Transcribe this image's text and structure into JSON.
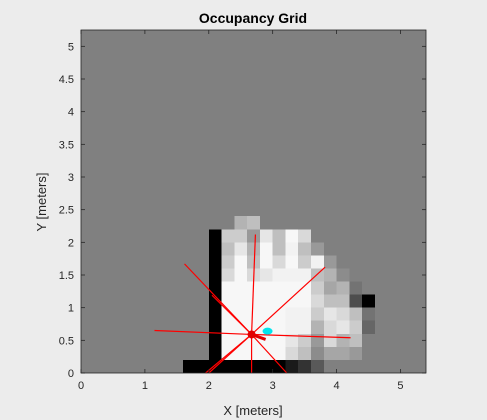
{
  "chart_data": {
    "type": "heatmap",
    "title": "Occupancy Grid",
    "xlabel": "X [meters]",
    "ylabel": "Y [meters]",
    "xlim": [
      0,
      5.4
    ],
    "ylim": [
      0,
      5.25
    ],
    "xticks": [
      0,
      1,
      2,
      3,
      4,
      5
    ],
    "xtick_labels": [
      "0",
      "1",
      "2",
      "3",
      "4",
      "5"
    ],
    "yticks": [
      0,
      0.5,
      1,
      1.5,
      2,
      2.5,
      3,
      3.5,
      4,
      4.5,
      5
    ],
    "ytick_labels": [
      "0",
      "0.5",
      "1",
      "1.5",
      "2",
      "2.5",
      "3",
      "3.5",
      "4",
      "4.5",
      "5"
    ],
    "grid": false,
    "resolution_m": 0.2,
    "default_occupancy": 0.5,
    "cells": [
      [
        1.6,
        0.0,
        2.2,
        0.2,
        0.0
      ],
      [
        2.2,
        0.0,
        3.2,
        0.2,
        0.0
      ],
      [
        3.2,
        0.0,
        3.4,
        0.2,
        0.1
      ],
      [
        3.4,
        0.0,
        3.6,
        0.2,
        0.2
      ],
      [
        3.6,
        0.0,
        3.8,
        0.2,
        0.35
      ],
      [
        2.0,
        0.2,
        2.2,
        0.8,
        0.0
      ],
      [
        2.2,
        0.2,
        3.2,
        1.0,
        0.97
      ],
      [
        3.2,
        0.2,
        3.4,
        0.4,
        0.85
      ],
      [
        3.4,
        0.2,
        3.6,
        0.4,
        0.75
      ],
      [
        3.6,
        0.2,
        3.8,
        0.4,
        0.55
      ],
      [
        3.2,
        0.4,
        3.4,
        0.6,
        0.9
      ],
      [
        3.4,
        0.4,
        3.6,
        0.6,
        0.8
      ],
      [
        3.6,
        0.4,
        3.8,
        0.6,
        0.6
      ],
      [
        3.2,
        0.6,
        3.6,
        1.0,
        0.95
      ],
      [
        3.6,
        0.6,
        3.8,
        0.8,
        0.7
      ],
      [
        2.0,
        0.8,
        2.2,
        1.0,
        0.0
      ],
      [
        3.6,
        0.8,
        3.8,
        1.0,
        0.8
      ],
      [
        3.8,
        0.8,
        4.0,
        1.0,
        0.9
      ],
      [
        4.0,
        0.8,
        4.2,
        1.0,
        0.85
      ],
      [
        4.2,
        0.8,
        4.4,
        1.0,
        0.75
      ],
      [
        4.4,
        0.8,
        4.6,
        1.0,
        0.45
      ],
      [
        4.2,
        0.6,
        4.4,
        0.8,
        0.8
      ],
      [
        4.4,
        0.6,
        4.6,
        0.8,
        0.4
      ],
      [
        4.0,
        0.4,
        4.2,
        0.6,
        0.7
      ],
      [
        4.2,
        0.4,
        4.4,
        0.6,
        0.75
      ],
      [
        4.4,
        0.4,
        4.6,
        0.6,
        0.5
      ],
      [
        3.8,
        0.2,
        4.2,
        0.4,
        0.65
      ],
      [
        4.2,
        0.2,
        4.4,
        0.4,
        0.6
      ],
      [
        3.8,
        0.4,
        4.0,
        0.8,
        0.85
      ],
      [
        4.0,
        0.6,
        4.2,
        0.8,
        0.9
      ],
      [
        2.0,
        1.0,
        2.2,
        1.4,
        0.0
      ],
      [
        2.2,
        1.0,
        3.6,
        1.4,
        0.97
      ],
      [
        3.6,
        1.0,
        3.8,
        1.2,
        0.85
      ],
      [
        3.8,
        1.0,
        4.0,
        1.2,
        0.75
      ],
      [
        4.0,
        1.0,
        4.2,
        1.2,
        0.75
      ],
      [
        4.2,
        1.0,
        4.4,
        1.2,
        0.3
      ],
      [
        4.4,
        1.0,
        4.6,
        1.2,
        0.0
      ],
      [
        3.6,
        1.2,
        3.8,
        1.4,
        0.8
      ],
      [
        3.8,
        1.2,
        4.0,
        1.4,
        0.65
      ],
      [
        4.0,
        1.2,
        4.2,
        1.4,
        0.7
      ],
      [
        4.2,
        1.2,
        4.4,
        1.4,
        0.45
      ],
      [
        2.0,
        1.4,
        2.2,
        1.6,
        0.0
      ],
      [
        2.2,
        1.4,
        2.4,
        1.6,
        0.85
      ],
      [
        2.4,
        1.4,
        2.6,
        1.6,
        0.97
      ],
      [
        2.6,
        1.4,
        2.8,
        1.6,
        0.85
      ],
      [
        2.8,
        1.4,
        3.0,
        1.6,
        0.9
      ],
      [
        3.0,
        1.4,
        3.6,
        1.6,
        0.95
      ],
      [
        3.6,
        1.4,
        3.8,
        1.6,
        0.75
      ],
      [
        3.8,
        1.4,
        4.0,
        1.6,
        0.7
      ],
      [
        4.0,
        1.4,
        4.2,
        1.6,
        0.55
      ],
      [
        2.0,
        1.6,
        2.2,
        1.8,
        0.0
      ],
      [
        2.2,
        1.6,
        2.4,
        1.8,
        0.8
      ],
      [
        2.4,
        1.6,
        2.6,
        1.8,
        0.97
      ],
      [
        2.6,
        1.6,
        2.8,
        1.8,
        0.75
      ],
      [
        2.8,
        1.6,
        3.0,
        1.8,
        0.97
      ],
      [
        3.0,
        1.6,
        3.2,
        1.8,
        0.85
      ],
      [
        3.2,
        1.6,
        3.4,
        1.8,
        0.97
      ],
      [
        3.4,
        1.6,
        3.6,
        1.8,
        0.8
      ],
      [
        3.6,
        1.6,
        3.8,
        1.8,
        0.95
      ],
      [
        3.8,
        1.6,
        4.0,
        1.8,
        0.6
      ],
      [
        2.0,
        1.8,
        2.2,
        2.0,
        0.0
      ],
      [
        2.2,
        1.8,
        2.4,
        2.0,
        0.75
      ],
      [
        2.4,
        1.8,
        2.6,
        2.0,
        0.9
      ],
      [
        2.6,
        1.8,
        2.8,
        2.0,
        0.7
      ],
      [
        2.8,
        1.8,
        3.0,
        2.0,
        0.97
      ],
      [
        3.0,
        1.8,
        3.2,
        2.0,
        0.75
      ],
      [
        3.2,
        1.8,
        3.4,
        2.0,
        0.95
      ],
      [
        3.4,
        1.8,
        3.6,
        2.0,
        0.75
      ],
      [
        3.6,
        1.8,
        3.8,
        2.0,
        0.6
      ],
      [
        2.0,
        2.0,
        2.2,
        2.2,
        0.0
      ],
      [
        2.2,
        2.0,
        2.4,
        2.2,
        0.8
      ],
      [
        2.4,
        2.0,
        2.6,
        2.2,
        0.8
      ],
      [
        2.6,
        2.0,
        2.8,
        2.2,
        0.6
      ],
      [
        2.8,
        2.0,
        3.0,
        2.2,
        0.9
      ],
      [
        3.0,
        2.0,
        3.2,
        2.2,
        0.75
      ],
      [
        3.2,
        2.0,
        3.4,
        2.2,
        0.97
      ],
      [
        3.4,
        2.0,
        3.6,
        2.2,
        0.85
      ],
      [
        2.4,
        2.2,
        2.6,
        2.4,
        0.7
      ],
      [
        2.6,
        2.2,
        2.8,
        2.4,
        0.75
      ]
    ],
    "robot": {
      "x": 2.67,
      "y": 0.59
    },
    "scan_rays": [
      [
        1.15,
        0.65
      ],
      [
        1.62,
        1.67
      ],
      [
        2.05,
        1.19
      ],
      [
        2.73,
        2.12
      ],
      [
        3.82,
        1.62
      ],
      [
        4.22,
        0.54
      ],
      [
        3.22,
        0.0
      ],
      [
        2.67,
        0.0
      ],
      [
        2.0,
        0.0
      ],
      [
        1.95,
        0.0
      ]
    ],
    "target": {
      "x": 2.92,
      "y": 0.64
    },
    "colors": {
      "figure_bg": "#ececec",
      "unknown": "#808080",
      "ray": "#ff0000",
      "robot": "#e00000",
      "target": "#00e5ee",
      "axis": "#262626"
    }
  }
}
